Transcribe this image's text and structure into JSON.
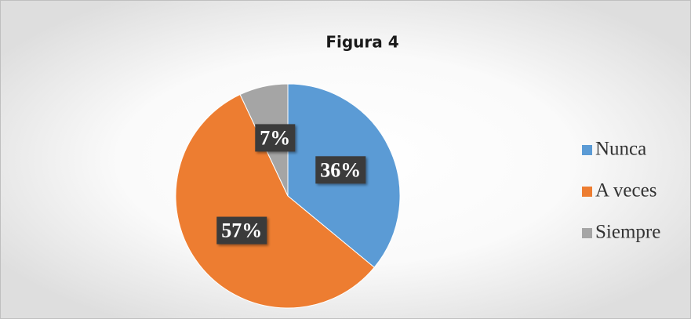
{
  "chart_data": {
    "type": "pie",
    "title": "Figura 4",
    "categories": [
      "Nunca",
      "A veces",
      "Siempre"
    ],
    "values": [
      36,
      57,
      7
    ],
    "value_labels": [
      "36%",
      "57%",
      "7%"
    ],
    "colors": [
      "#5b9bd5",
      "#ed7d31",
      "#a5a5a5"
    ],
    "legend": "right"
  }
}
